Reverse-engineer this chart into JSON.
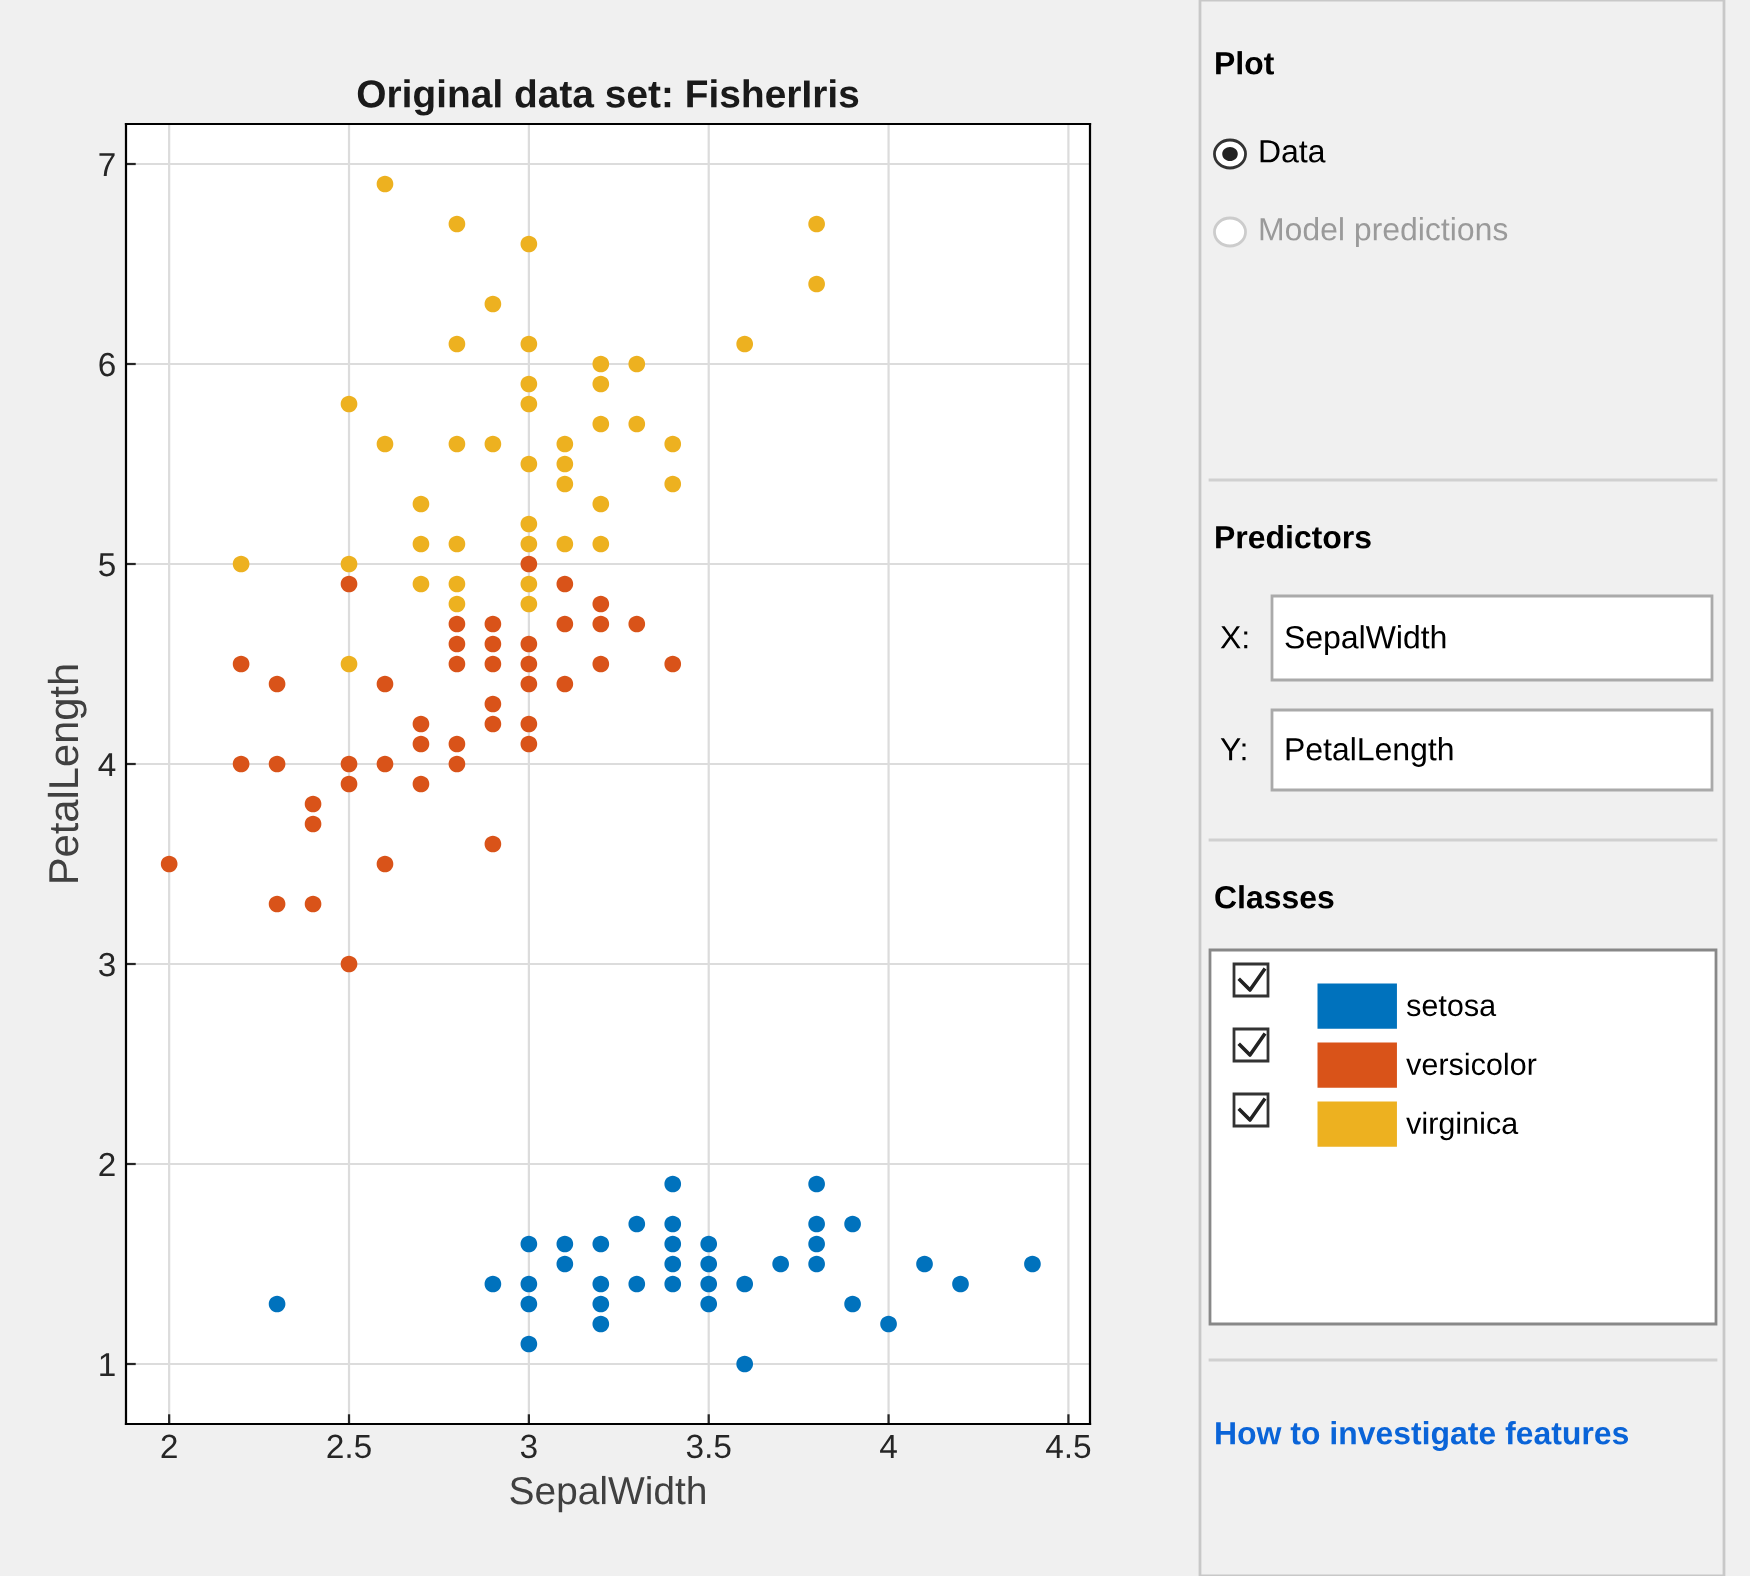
{
  "chart_data": [
    {
      "type": "scatter",
      "title": "Original data set: FisherIris",
      "xlabel": "SepalWidth",
      "ylabel": "PetalLength",
      "xlim": [
        1.88,
        4.56
      ],
      "ylim": [
        0.7,
        7.2
      ],
      "xticks": [
        2,
        2.5,
        3,
        3.5,
        4,
        4.5
      ],
      "yticks": [
        1,
        2,
        3,
        4,
        5,
        6,
        7
      ],
      "grid": true,
      "marker": "circle",
      "legend": "right",
      "series": [
        {
          "name": "setosa",
          "color": "#0072bd",
          "x": [
            3.5,
            3.0,
            3.2,
            3.1,
            3.6,
            3.9,
            3.4,
            3.4,
            2.9,
            3.7,
            3.4,
            3.0,
            4.0,
            4.4,
            3.9,
            3.8,
            3.8,
            3.4,
            3.6,
            3.3,
            3.4,
            3.0,
            3.5,
            3.2,
            3.1,
            4.1,
            4.2,
            3.2,
            3.5,
            3.0,
            2.3,
            3.5,
            3.8,
            3.8,
            3.2,
            3.3
          ],
          "values": [
            1.4,
            1.4,
            1.3,
            1.5,
            1.4,
            1.7,
            1.4,
            1.5,
            1.4,
            1.5,
            1.6,
            1.1,
            1.2,
            1.5,
            1.3,
            1.7,
            1.5,
            1.7,
            1.0,
            1.7,
            1.9,
            1.6,
            1.5,
            1.6,
            1.6,
            1.5,
            1.4,
            1.2,
            1.3,
            1.3,
            1.3,
            1.6,
            1.9,
            1.6,
            1.4,
            1.4
          ]
        },
        {
          "name": "versicolor",
          "color": "#d95319",
          "x": [
            3.2,
            3.2,
            3.1,
            2.3,
            2.8,
            2.8,
            3.3,
            2.4,
            2.9,
            2.7,
            2.0,
            3.0,
            2.2,
            2.9,
            2.9,
            3.1,
            3.0,
            2.7,
            2.2,
            2.5,
            3.2,
            2.8,
            2.5,
            2.8,
            2.9,
            3.0,
            3.0,
            2.9,
            2.6,
            2.4,
            2.4,
            3.4,
            3.1,
            2.3,
            3.0,
            2.5,
            2.6,
            3.0,
            2.6,
            2.3,
            2.7,
            2.9,
            2.5,
            2.8
          ],
          "values": [
            4.7,
            4.5,
            4.9,
            4.0,
            4.6,
            4.5,
            4.7,
            3.3,
            4.6,
            3.9,
            3.5,
            4.2,
            4.0,
            4.7,
            3.6,
            4.4,
            4.5,
            4.1,
            4.5,
            3.9,
            4.8,
            4.0,
            4.9,
            4.7,
            4.3,
            4.4,
            5.0,
            4.5,
            3.5,
            3.8,
            3.7,
            4.5,
            4.7,
            4.4,
            4.1,
            4.0,
            4.4,
            4.6,
            4.0,
            3.3,
            4.2,
            4.2,
            3.0,
            4.1
          ]
        },
        {
          "name": "virginica",
          "color": "#edb120",
          "x": [
            3.3,
            2.7,
            3.0,
            2.9,
            3.0,
            3.0,
            2.5,
            2.9,
            2.5,
            3.6,
            3.2,
            2.7,
            3.0,
            2.5,
            2.8,
            3.2,
            3.8,
            2.6,
            2.2,
            3.2,
            2.8,
            2.8,
            2.7,
            3.3,
            3.2,
            2.8,
            3.0,
            2.8,
            2.8,
            3.8,
            2.6,
            3.0,
            3.4,
            3.1,
            3.0,
            3.1,
            3.1,
            3.1,
            3.2,
            3.0,
            3.4,
            3.0
          ],
          "values": [
            6.0,
            5.1,
            5.9,
            5.6,
            5.8,
            6.6,
            4.5,
            6.3,
            5.8,
            6.1,
            5.1,
            5.3,
            5.5,
            5.0,
            5.1,
            5.3,
            6.7,
            6.9,
            5.0,
            5.7,
            4.9,
            6.7,
            4.9,
            5.7,
            6.0,
            4.8,
            4.9,
            5.6,
            6.1,
            6.4,
            5.6,
            6.1,
            5.6,
            5.5,
            4.8,
            5.4,
            5.6,
            5.1,
            5.9,
            5.2,
            5.4,
            5.1
          ]
        }
      ]
    },
    {
      "type": "other",
      "annotations": [
        "Plot",
        "Data",
        "Model predictions",
        "Predictors",
        "X:",
        "SepalWidth",
        "Y:",
        "PetalLength",
        "Classes",
        "How to investigate features"
      ]
    }
  ]
}
